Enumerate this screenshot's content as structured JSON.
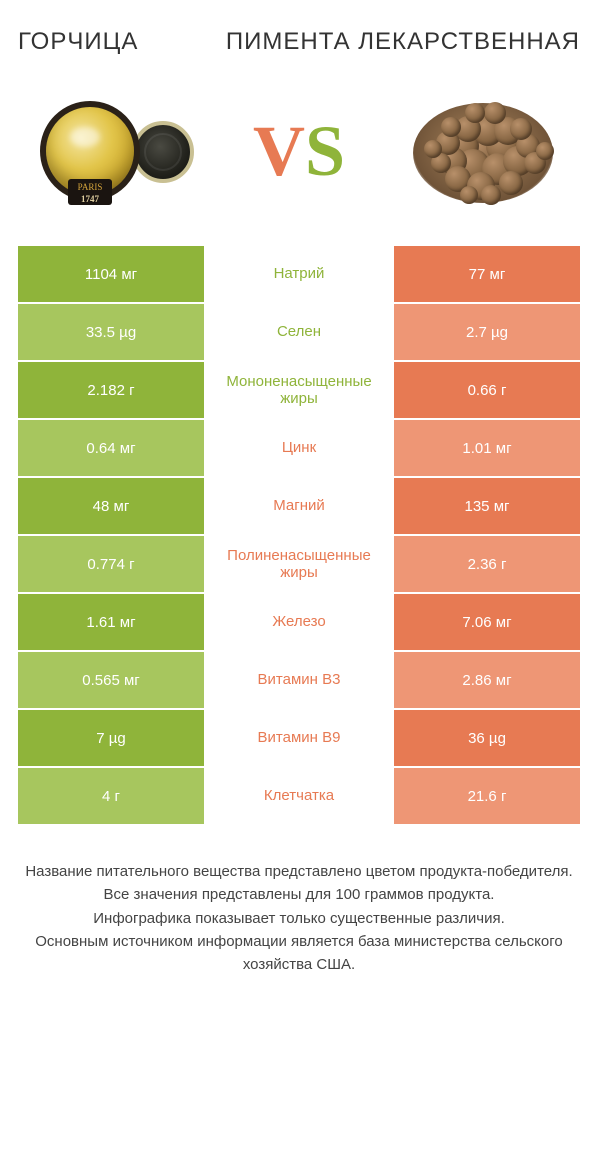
{
  "titles": {
    "left": "ГОРЧИЦА",
    "right": "ПИМЕНТА ЛЕКАРСТВЕННАЯ"
  },
  "vs": {
    "v": "V",
    "s": "S"
  },
  "colors": {
    "green_dark": "#8fb43a",
    "green_light": "#a7c65e",
    "orange_dark": "#e77a53",
    "orange_light": "#ee9675",
    "text": "#333333"
  },
  "jar_label": {
    "line1": "PARIS",
    "line2": "1747"
  },
  "type": "comparison-table",
  "rows": [
    {
      "nutrient": "Натрий",
      "winner": "left",
      "left": "1104 мг",
      "right": "77 мг"
    },
    {
      "nutrient": "Селен",
      "winner": "left",
      "left": "33.5 µg",
      "right": "2.7 µg"
    },
    {
      "nutrient": "Мононенасыщенные жиры",
      "winner": "left",
      "left": "2.182 г",
      "right": "0.66 г"
    },
    {
      "nutrient": "Цинк",
      "winner": "right",
      "left": "0.64 мг",
      "right": "1.01 мг"
    },
    {
      "nutrient": "Магний",
      "winner": "right",
      "left": "48 мг",
      "right": "135 мг"
    },
    {
      "nutrient": "Полиненасыщенные жиры",
      "winner": "right",
      "left": "0.774 г",
      "right": "2.36 г"
    },
    {
      "nutrient": "Железо",
      "winner": "right",
      "left": "1.61 мг",
      "right": "7.06 мг"
    },
    {
      "nutrient": "Витамин B3",
      "winner": "right",
      "left": "0.565 мг",
      "right": "2.86 мг"
    },
    {
      "nutrient": "Витамин B9",
      "winner": "right",
      "left": "7 µg",
      "right": "36 µg"
    },
    {
      "nutrient": "Клетчатка",
      "winner": "right",
      "left": "4 г",
      "right": "21.6 г"
    }
  ],
  "footer_lines": [
    "Название питательного вещества представлено цветом продукта-победителя.",
    "Все значения представлены для 100 граммов продукта.",
    "Инфографика показывает только существенные различия.",
    "Основным источником информации является база министерства сельского хозяйства США."
  ]
}
